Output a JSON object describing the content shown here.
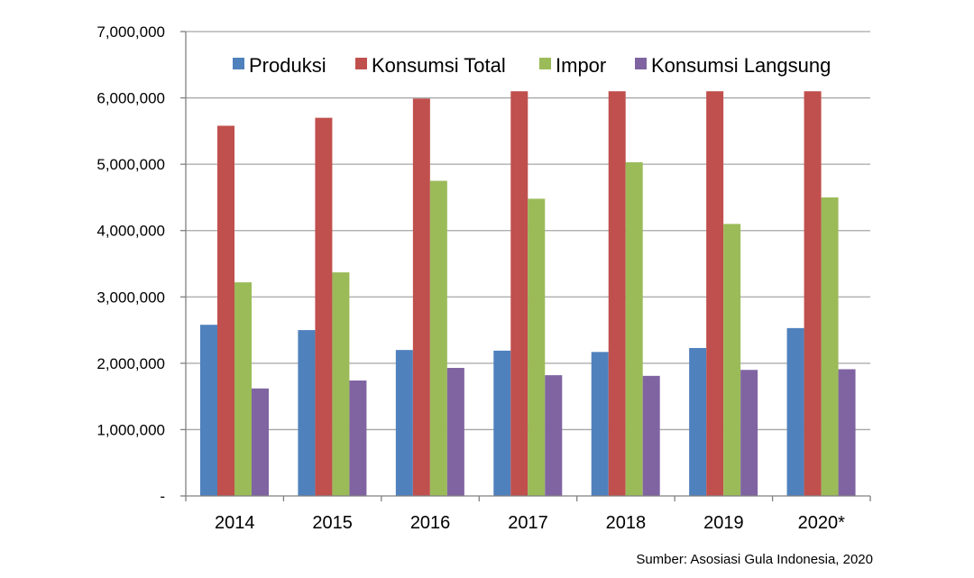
{
  "chart_data": {
    "type": "bar",
    "categories": [
      "2014",
      "2015",
      "2016",
      "2017",
      "2018",
      "2019",
      "2020*"
    ],
    "series": [
      {
        "name": "Produksi",
        "color": "#4f81bd",
        "values": [
          2580000,
          2500000,
          2200000,
          2190000,
          2170000,
          2230000,
          2530000
        ]
      },
      {
        "name": "Konsumsi Total",
        "color": "#c0504d",
        "values": [
          5580000,
          5700000,
          5990000,
          6100000,
          6100000,
          6100000,
          6100000
        ]
      },
      {
        "name": "Impor",
        "color": "#9bbb59",
        "values": [
          3220000,
          3370000,
          4750000,
          4480000,
          5030000,
          4100000,
          4500000
        ]
      },
      {
        "name": "Konsumsi Langsung",
        "color": "#8064a2",
        "values": [
          1620000,
          1740000,
          1930000,
          1820000,
          1810000,
          1900000,
          1910000
        ]
      }
    ],
    "yticks": [
      {
        "value": 0,
        "label": "-"
      },
      {
        "value": 1000000,
        "label": "1,000,000"
      },
      {
        "value": 2000000,
        "label": "2,000,000"
      },
      {
        "value": 3000000,
        "label": "3,000,000"
      },
      {
        "value": 4000000,
        "label": "4,000,000"
      },
      {
        "value": 5000000,
        "label": "5,000,000"
      },
      {
        "value": 6000000,
        "label": "6,000,000"
      },
      {
        "value": 7000000,
        "label": "7,000,000"
      }
    ],
    "ylim": [
      0,
      7000000
    ],
    "grid": true,
    "legend_position": "top",
    "source": "Sumber: Asosiasi Gula Indonesia, 2020"
  }
}
